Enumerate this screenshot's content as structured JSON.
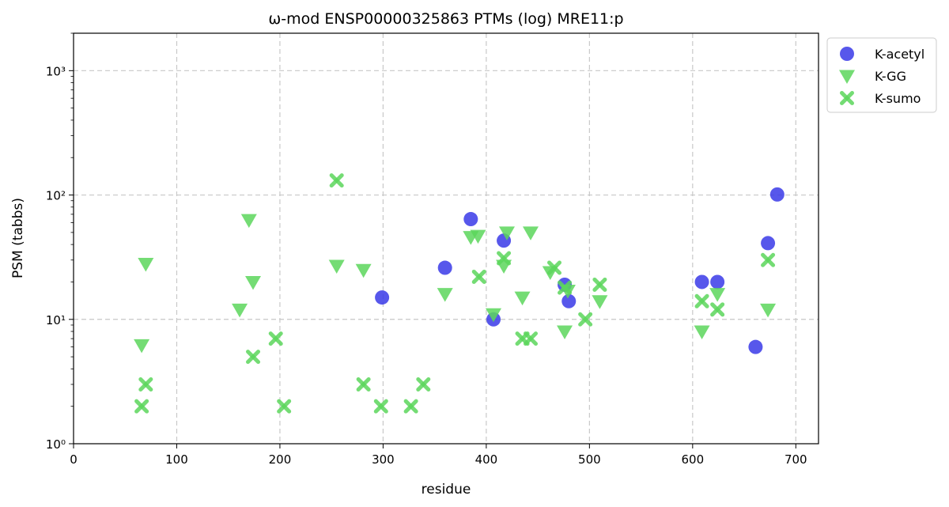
{
  "chart_data": {
    "type": "scatter",
    "title": "ω-mod ENSP00000325863 PTMs (log) MRE11:p",
    "xlabel": "residue",
    "ylabel": "PSM (tabbs)",
    "xlim": [
      0,
      722
    ],
    "ylim": [
      1,
      2000
    ],
    "yscale": "log",
    "x_ticks": [
      0,
      100,
      200,
      300,
      400,
      500,
      600,
      700
    ],
    "y_ticks": [
      {
        "value": 1,
        "label": "10⁰"
      },
      {
        "value": 10,
        "label": "10¹"
      },
      {
        "value": 100,
        "label": "10²"
      },
      {
        "value": 1000,
        "label": "10³"
      }
    ],
    "grid": true,
    "legend_position": "outside-top-right",
    "series": [
      {
        "name": "K-acetyl",
        "marker": "circle",
        "color": "#3a3ae8",
        "points": [
          {
            "x": 299,
            "y": 15
          },
          {
            "x": 360,
            "y": 26
          },
          {
            "x": 385,
            "y": 64
          },
          {
            "x": 407,
            "y": 10
          },
          {
            "x": 417,
            "y": 43
          },
          {
            "x": 476,
            "y": 19
          },
          {
            "x": 480,
            "y": 14
          },
          {
            "x": 609,
            "y": 20
          },
          {
            "x": 624,
            "y": 20
          },
          {
            "x": 661,
            "y": 6
          },
          {
            "x": 673,
            "y": 41
          },
          {
            "x": 682,
            "y": 101
          }
        ]
      },
      {
        "name": "K-GG",
        "marker": "triangle-down",
        "color": "#5cd65c",
        "points": [
          {
            "x": 66,
            "y": 6.2
          },
          {
            "x": 70,
            "y": 28
          },
          {
            "x": 161,
            "y": 12
          },
          {
            "x": 170,
            "y": 63
          },
          {
            "x": 174,
            "y": 20
          },
          {
            "x": 255,
            "y": 27
          },
          {
            "x": 281,
            "y": 25
          },
          {
            "x": 360,
            "y": 16
          },
          {
            "x": 385,
            "y": 46
          },
          {
            "x": 392,
            "y": 47
          },
          {
            "x": 407,
            "y": 11
          },
          {
            "x": 417,
            "y": 27
          },
          {
            "x": 420,
            "y": 50
          },
          {
            "x": 435,
            "y": 15
          },
          {
            "x": 443,
            "y": 50
          },
          {
            "x": 462,
            "y": 24
          },
          {
            "x": 476,
            "y": 8
          },
          {
            "x": 479,
            "y": 17
          },
          {
            "x": 510,
            "y": 14
          },
          {
            "x": 609,
            "y": 8
          },
          {
            "x": 624,
            "y": 16
          },
          {
            "x": 673,
            "y": 12
          }
        ]
      },
      {
        "name": "K-sumo",
        "marker": "x",
        "color": "#5cd65c",
        "points": [
          {
            "x": 66,
            "y": 2
          },
          {
            "x": 70,
            "y": 3
          },
          {
            "x": 174,
            "y": 5
          },
          {
            "x": 196,
            "y": 7
          },
          {
            "x": 204,
            "y": 2
          },
          {
            "x": 255,
            "y": 131
          },
          {
            "x": 281,
            "y": 3
          },
          {
            "x": 298,
            "y": 2
          },
          {
            "x": 327,
            "y": 2
          },
          {
            "x": 339,
            "y": 3
          },
          {
            "x": 393,
            "y": 22
          },
          {
            "x": 417,
            "y": 31
          },
          {
            "x": 435,
            "y": 7
          },
          {
            "x": 443,
            "y": 7
          },
          {
            "x": 466,
            "y": 26
          },
          {
            "x": 476,
            "y": 18
          },
          {
            "x": 496,
            "y": 10
          },
          {
            "x": 510,
            "y": 19
          },
          {
            "x": 609,
            "y": 14
          },
          {
            "x": 624,
            "y": 12
          },
          {
            "x": 673,
            "y": 30
          }
        ]
      }
    ]
  }
}
